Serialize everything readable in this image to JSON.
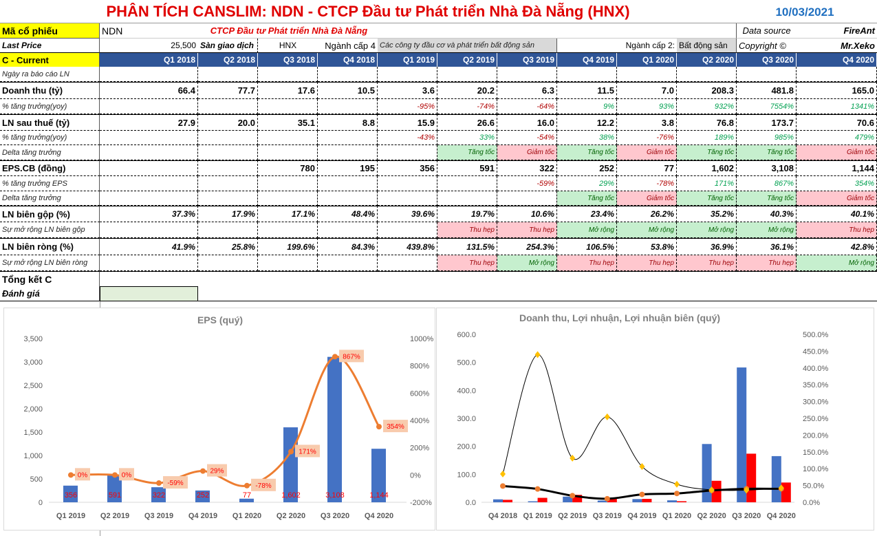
{
  "title": "PHÂN TÍCH CANSLIM: NDN - CTCP Đầu tư Phát triển Nhà Đà Nẵng (HNX)",
  "date": "10/03/2021",
  "info": {
    "ticker_label": "Mã cổ phiếu",
    "ticker": "NDN",
    "company": "CTCP Đầu tư Phát triển Nhà Đà Nẵng",
    "data_source_label": "Data source",
    "data_source": "FireAnt",
    "last_price_label": "Last Price",
    "last_price": "25,500",
    "exchange_label": "Sàn giao dịch",
    "exchange": "HNX",
    "industry4_label": "Ngành cấp 4",
    "industry4": "Các công ty đầu cơ và phát triển bất động sản",
    "industry2_label": "Ngành cấp 2:",
    "industry2": "Bất động sản",
    "copyright_label": "Copyright ©",
    "copyright": "Mr.Xeko"
  },
  "header": {
    "label": "C - Current",
    "quarters": [
      "Q1 2018",
      "Q2 2018",
      "Q3 2018",
      "Q4 2018",
      "Q1 2019",
      "Q2 2019",
      "Q3 2019",
      "Q4 2019",
      "Q1 2020",
      "Q2 2020",
      "Q3 2020",
      "Q4 2020"
    ]
  },
  "tones": {
    "Tăng tốc": "good",
    "Mở rộng": "good",
    "Giảm tốc": "bad",
    "Thu hẹp": "bad"
  },
  "rows": [
    {
      "label": "Ngày ra báo cáo LN",
      "style": "sub",
      "values": [
        "",
        "",
        "",
        "",
        "",
        "",
        "",
        "",
        "",
        "",
        "",
        ""
      ]
    },
    {
      "label": "Doanh thu (tỷ)",
      "style": "main",
      "values": [
        "66.4",
        "77.7",
        "17.6",
        "10.5",
        "3.6",
        "20.2",
        "6.3",
        "11.5",
        "7.0",
        "208.3",
        "481.8",
        "165.0"
      ]
    },
    {
      "label": "% tăng trưởng(yoy)",
      "style": "pct",
      "values": [
        "",
        "",
        "",
        "",
        "-95%",
        "-74%",
        "-64%",
        "9%",
        "93%",
        "932%",
        "7554%",
        "1341%"
      ]
    },
    {
      "label": "LN sau thuế (tỷ)",
      "style": "main",
      "values": [
        "27.9",
        "20.0",
        "35.1",
        "8.8",
        "15.9",
        "26.6",
        "16.0",
        "12.2",
        "3.8",
        "76.8",
        "173.7",
        "70.6"
      ]
    },
    {
      "label": "% tăng trưởng(yoy)",
      "style": "pct",
      "values": [
        "",
        "",
        "",
        "",
        "-43%",
        "33%",
        "-54%",
        "38%",
        "-76%",
        "189%",
        "985%",
        "479%"
      ]
    },
    {
      "label": "Delta tăng trưởng",
      "style": "tag",
      "values": [
        "",
        "",
        "",
        "",
        "",
        "Tăng tốc",
        "Giảm tốc",
        "Tăng tốc",
        "Giảm tốc",
        "Tăng tốc",
        "Tăng tốc",
        "Giảm tốc"
      ]
    },
    {
      "label": "EPS.CB (đồng)",
      "style": "main",
      "values": [
        "",
        "",
        "780",
        "195",
        "356",
        "591",
        "322",
        "252",
        "77",
        "1,602",
        "3,108",
        "1,144"
      ]
    },
    {
      "label": "% tăng trưởng EPS",
      "style": "pct",
      "values": [
        "",
        "",
        "",
        "",
        "",
        "",
        "-59%",
        "29%",
        "-78%",
        "171%",
        "867%",
        "354%"
      ]
    },
    {
      "label": "Delta tăng trưởng",
      "style": "tag",
      "values": [
        "",
        "",
        "",
        "",
        "",
        "",
        "",
        "Tăng tốc",
        "Giảm tốc",
        "Tăng tốc",
        "Tăng tốc",
        "Giảm tốc"
      ]
    },
    {
      "label": "LN biên gộp (%)",
      "style": "mi",
      "values": [
        "37.3%",
        "17.9%",
        "17.1%",
        "48.4%",
        "39.6%",
        "19.7%",
        "10.6%",
        "23.4%",
        "26.2%",
        "35.2%",
        "40.3%",
        "40.1%"
      ]
    },
    {
      "label": "Sự mở rộng LN biên gộp",
      "style": "tag",
      "values": [
        "",
        "",
        "",
        "",
        "",
        "Thu hẹp",
        "Thu hẹp",
        "Mở rộng",
        "Mở rộng",
        "Mở rộng",
        "Mở rộng",
        "Thu hẹp"
      ]
    },
    {
      "label": "LN biên ròng (%)",
      "style": "mi",
      "values": [
        "41.9%",
        "25.8%",
        "199.6%",
        "84.3%",
        "439.8%",
        "131.5%",
        "254.3%",
        "106.5%",
        "53.8%",
        "36.9%",
        "36.1%",
        "42.8%"
      ]
    },
    {
      "label": "Sự mở rộng LN biên ròng",
      "style": "tag",
      "values": [
        "",
        "",
        "",
        "",
        "",
        "Thu hẹp",
        "Mở rộng",
        "Thu hẹp",
        "Thu hẹp",
        "Thu hẹp",
        "Thu hẹp",
        "Mở rộng"
      ]
    }
  ],
  "summary": {
    "label": "Tổng kết C",
    "rating_label": "Đánh giá",
    "rating": ""
  },
  "colors": {
    "bar_blue": "#4472c4",
    "bar_red": "#ff0000",
    "line_orange": "#ed7d31",
    "diamond": "#ffc000",
    "header": "#2f5597"
  },
  "chart_data": [
    {
      "type": "bar",
      "title": "EPS  (quý)",
      "categories": [
        "Q1 2019",
        "Q2 2019",
        "Q3 2019",
        "Q4 2019",
        "Q1 2020",
        "Q2 2020",
        "Q3 2020",
        "Q4 2020"
      ],
      "series": [
        {
          "name": "EPS",
          "axis": "left",
          "values": [
            356,
            591,
            322,
            252,
            77,
            1602,
            3108,
            1144
          ],
          "labels": [
            "356",
            "591",
            "322",
            "252",
            "77",
            "1,602",
            "3,108",
            "1,144"
          ]
        },
        {
          "name": "% tăng trưởng EPS",
          "type": "line",
          "axis": "right",
          "values": [
            0,
            0,
            -59,
            29,
            -78,
            171,
            867,
            354
          ],
          "labels": [
            "0%",
            "0%",
            "-59%",
            "29%",
            "-78%",
            "171%",
            "867%",
            "354%"
          ]
        }
      ],
      "ylim": [
        0,
        3500
      ],
      "yticks": [
        "0",
        "500",
        "1,000",
        "1,500",
        "2,000",
        "2,500",
        "3,000",
        "3,500"
      ],
      "y2lim": [
        -200,
        1000
      ],
      "y2ticks": [
        "-200%",
        "0%",
        "200%",
        "400%",
        "600%",
        "800%",
        "1000%"
      ]
    },
    {
      "type": "bar",
      "title": "Doanh thu, Lợi nhuận, Lợi nhuận biên (quý)",
      "categories": [
        "Q4 2018",
        "Q1 2019",
        "Q2 2019",
        "Q3 2019",
        "Q4 2019",
        "Q1 2020",
        "Q2 2020",
        "Q3 2020",
        "Q4 2020"
      ],
      "series": [
        {
          "name": "Doanh thu",
          "axis": "left",
          "values": [
            10.5,
            3.6,
            20.2,
            6.3,
            11.5,
            7.0,
            208.3,
            481.8,
            165.0
          ]
        },
        {
          "name": "LN sau thuế",
          "axis": "left",
          "values": [
            8.8,
            15.9,
            26.6,
            16.0,
            12.2,
            3.8,
            76.8,
            173.7,
            70.6
          ]
        },
        {
          "name": "LN biên gộp",
          "type": "line",
          "axis": "right",
          "values": [
            48.4,
            39.6,
            19.7,
            10.6,
            23.4,
            26.2,
            35.2,
            40.3,
            40.1
          ]
        },
        {
          "name": "LN biên ròng",
          "type": "line",
          "axis": "right",
          "values": [
            84.3,
            439.8,
            131.5,
            254.3,
            106.5,
            53.8,
            36.9,
            36.1,
            42.8
          ]
        }
      ],
      "ylim": [
        0,
        600
      ],
      "yticks": [
        "0.0",
        "100.0",
        "200.0",
        "300.0",
        "400.0",
        "500.0",
        "600.0"
      ],
      "y2lim": [
        0,
        500
      ],
      "y2ticks": [
        "0.0%",
        "50.0%",
        "100.0%",
        "150.0%",
        "200.0%",
        "250.0%",
        "300.0%",
        "350.0%",
        "400.0%",
        "450.0%",
        "500.0%"
      ]
    }
  ]
}
